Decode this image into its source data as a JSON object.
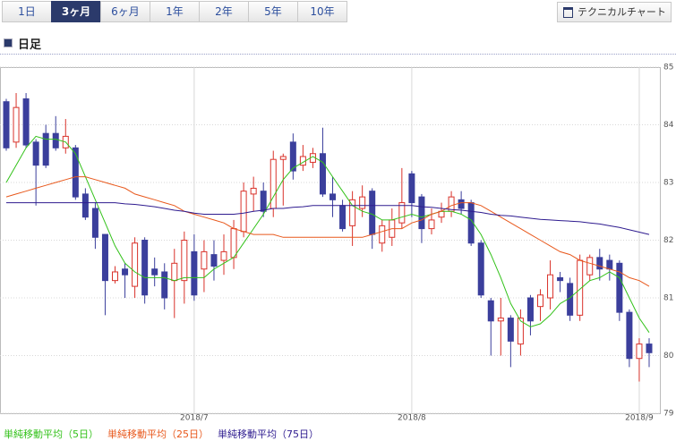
{
  "tabs": [
    "1日",
    "3ヶ月",
    "6ヶ月",
    "1年",
    "2年",
    "5年",
    "10年"
  ],
  "active_tab": 1,
  "button": "テクニカルチャート",
  "section_title": "日足",
  "chart_data": {
    "type": "candlestick",
    "categories": [
      null,
      null,
      null,
      null,
      null,
      null,
      null,
      null,
      null,
      null,
      null,
      null,
      null,
      null,
      null,
      null,
      null,
      null,
      null,
      "2018/7",
      null,
      null,
      null,
      null,
      null,
      null,
      null,
      null,
      null,
      null,
      null,
      null,
      null,
      null,
      null,
      null,
      null,
      null,
      null,
      null,
      null,
      "2018/8",
      null,
      null,
      null,
      null,
      null,
      null,
      null,
      null,
      null,
      null,
      null,
      null,
      null,
      null,
      null,
      null,
      null,
      null,
      null,
      null,
      null,
      null,
      "2018/9",
      null
    ],
    "open": [
      84.4,
      83.7,
      84.45,
      83.7,
      83.85,
      83.85,
      83.6,
      83.6,
      82.8,
      82.55,
      82.1,
      81.3,
      81.5,
      81.2,
      82.0,
      81.5,
      81.45,
      81.3,
      81.3,
      81.8,
      81.5,
      81.75,
      81.65,
      81.7,
      82.15,
      82.8,
      82.85,
      82.55,
      83.4,
      83.7,
      83.3,
      83.35,
      83.5,
      82.8,
      82.6,
      82.25,
      82.55,
      82.85,
      81.95,
      82.05,
      82.3,
      83.15,
      82.75,
      82.2,
      82.4,
      82.5,
      82.7,
      82.65,
      81.95,
      80.95,
      80.6,
      80.65,
      80.2,
      81.0,
      80.85,
      81.0,
      81.35,
      81.25,
      80.7,
      81.4,
      81.7,
      81.65,
      81.6,
      80.75,
      79.95,
      80.2
    ],
    "high": [
      84.45,
      84.55,
      84.55,
      83.75,
      84.0,
      84.15,
      84.1,
      83.65,
      82.9,
      82.65,
      82.1,
      81.55,
      81.6,
      82.05,
      82.05,
      81.7,
      81.6,
      81.85,
      82.15,
      82.1,
      82.0,
      82.0,
      82.1,
      82.35,
      83.0,
      83.1,
      83.0,
      83.55,
      83.5,
      83.85,
      83.65,
      83.6,
      83.95,
      83.1,
      82.7,
      82.85,
      82.95,
      82.9,
      82.35,
      82.55,
      83.25,
      83.2,
      82.8,
      82.55,
      82.65,
      82.85,
      82.85,
      82.7,
      82.0,
      81.0,
      81.0,
      80.7,
      80.8,
      81.05,
      81.15,
      81.65,
      81.45,
      81.35,
      81.75,
      81.75,
      81.85,
      81.75,
      81.65,
      80.8,
      80.3,
      80.3
    ],
    "low": [
      83.55,
      83.6,
      83.6,
      82.6,
      83.25,
      83.55,
      83.5,
      82.7,
      82.35,
      81.85,
      80.7,
      81.25,
      81.0,
      81.0,
      80.9,
      81.2,
      80.8,
      80.65,
      80.9,
      80.95,
      81.1,
      81.3,
      81.4,
      81.5,
      82.05,
      82.5,
      82.4,
      82.4,
      82.6,
      83.05,
      83.2,
      83.25,
      82.75,
      82.4,
      82.15,
      81.9,
      82.4,
      81.85,
      81.8,
      81.9,
      82.2,
      82.4,
      81.95,
      82.1,
      82.3,
      82.4,
      82.45,
      81.9,
      81.0,
      80.0,
      80.0,
      79.8,
      80.0,
      80.35,
      80.6,
      80.8,
      81.1,
      80.6,
      80.6,
      81.3,
      81.3,
      81.3,
      80.6,
      79.8,
      79.55,
      79.8
    ],
    "close": [
      83.6,
      84.3,
      83.65,
      83.3,
      83.3,
      83.6,
      83.8,
      82.75,
      82.4,
      82.05,
      81.3,
      81.45,
      81.4,
      81.95,
      81.05,
      81.4,
      81.0,
      81.6,
      82.0,
      81.05,
      81.8,
      81.55,
      81.8,
      82.2,
      82.85,
      82.9,
      82.5,
      83.4,
      83.45,
      83.2,
      83.45,
      83.5,
      82.8,
      82.7,
      82.2,
      82.7,
      82.75,
      82.1,
      82.25,
      82.35,
      82.65,
      82.65,
      82.2,
      82.35,
      82.5,
      82.75,
      82.55,
      81.95,
      81.05,
      80.6,
      80.65,
      80.25,
      80.65,
      80.6,
      81.05,
      81.4,
      81.3,
      80.7,
      81.65,
      81.7,
      81.5,
      81.5,
      80.75,
      79.95,
      80.2,
      80.05
    ],
    "up_color": "#d9322a",
    "down_color": "#3b3f9c",
    "series": [
      {
        "name": "単純移動平均（5日）",
        "color": "#33c21a",
        "values": [
          83.0,
          83.3,
          83.6,
          83.8,
          83.75,
          83.75,
          83.7,
          83.5,
          83.1,
          82.7,
          82.3,
          81.9,
          81.6,
          81.45,
          81.35,
          81.35,
          81.35,
          81.3,
          81.35,
          81.35,
          81.35,
          81.5,
          81.6,
          81.7,
          81.95,
          82.2,
          82.45,
          82.75,
          83.05,
          83.25,
          83.35,
          83.45,
          83.35,
          83.1,
          82.85,
          82.6,
          82.5,
          82.45,
          82.35,
          82.35,
          82.4,
          82.45,
          82.4,
          82.45,
          82.5,
          82.5,
          82.45,
          82.35,
          82.1,
          81.75,
          81.35,
          80.9,
          80.6,
          80.5,
          80.55,
          80.7,
          80.9,
          81.0,
          81.15,
          81.3,
          81.35,
          81.45,
          81.35,
          81.0,
          80.65,
          80.4
        ]
      },
      {
        "name": "単純移動平均（25日）",
        "color": "#e8581c",
        "values": [
          82.75,
          82.8,
          82.85,
          82.9,
          82.95,
          83.0,
          83.05,
          83.1,
          83.1,
          83.05,
          83.0,
          82.95,
          82.9,
          82.8,
          82.75,
          82.7,
          82.65,
          82.6,
          82.5,
          82.45,
          82.4,
          82.35,
          82.3,
          82.2,
          82.15,
          82.1,
          82.1,
          82.1,
          82.05,
          82.05,
          82.05,
          82.05,
          82.05,
          82.05,
          82.05,
          82.05,
          82.05,
          82.1,
          82.15,
          82.2,
          82.2,
          82.3,
          82.35,
          82.45,
          82.5,
          82.6,
          82.65,
          82.65,
          82.6,
          82.5,
          82.4,
          82.3,
          82.2,
          82.1,
          82.0,
          81.9,
          81.8,
          81.75,
          81.65,
          81.6,
          81.55,
          81.5,
          81.45,
          81.35,
          81.3,
          81.2
        ]
      },
      {
        "name": "単純移動平均（75日）",
        "color": "#2e1b8f",
        "values": [
          82.65,
          82.65,
          82.65,
          82.65,
          82.65,
          82.65,
          82.65,
          82.65,
          82.65,
          82.65,
          82.65,
          82.65,
          82.63,
          82.62,
          82.6,
          82.58,
          82.55,
          82.52,
          82.5,
          82.47,
          82.45,
          82.45,
          82.45,
          82.45,
          82.47,
          82.5,
          82.52,
          82.55,
          82.55,
          82.57,
          82.58,
          82.6,
          82.6,
          82.6,
          82.6,
          82.6,
          82.6,
          82.6,
          82.6,
          82.6,
          82.6,
          82.6,
          82.58,
          82.57,
          82.55,
          82.53,
          82.52,
          82.5,
          82.48,
          82.45,
          82.43,
          82.42,
          82.4,
          82.38,
          82.36,
          82.35,
          82.34,
          82.33,
          82.32,
          82.3,
          82.28,
          82.25,
          82.22,
          82.18,
          82.14,
          82.1
        ]
      }
    ],
    "ylim": [
      79,
      85
    ],
    "yticks": [
      79,
      80,
      81,
      82,
      83,
      84,
      85
    ],
    "grid": true
  }
}
